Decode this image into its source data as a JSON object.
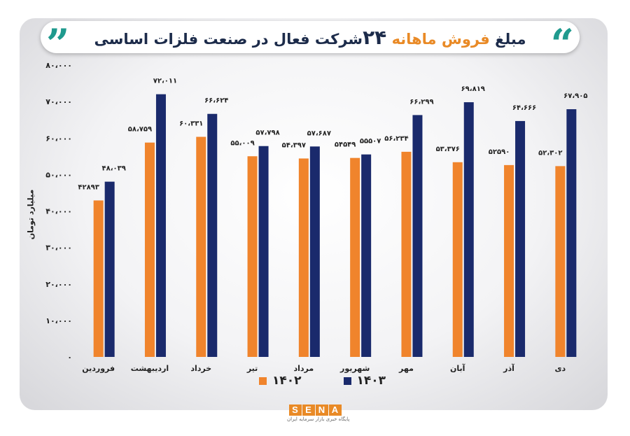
{
  "title": {
    "part1": "مبلغ",
    "part2": "فروش",
    "part3": "ماهانه",
    "number": "۲۴",
    "part4": "شرکت فعال در صنعت فلزات اساسی"
  },
  "colors": {
    "series_1402": "#f0842c",
    "series_1403": "#1a2a6c",
    "accent": "#1f9a8e"
  },
  "legend": {
    "s1402": "۱۴۰۲",
    "s1403": "۱۴۰۳"
  },
  "logo": {
    "letters": [
      "S",
      "E",
      "N",
      "A"
    ],
    "subtitle": "پایگاه خبری بازار سرمایه ایران"
  },
  "chart_data": {
    "type": "bar",
    "ylabel": "میلیارد تومان",
    "ylim": [
      0,
      80000
    ],
    "yticks": [
      0,
      10000,
      20000,
      30000,
      40000,
      50000,
      60000,
      70000,
      80000
    ],
    "ytick_labels": [
      "۰",
      "۱۰،۰۰۰",
      "۲۰،۰۰۰",
      "۳۰،۰۰۰",
      "۴۰،۰۰۰",
      "۵۰،۰۰۰",
      "۶۰،۰۰۰",
      "۷۰،۰۰۰",
      "۸۰،۰۰۰"
    ],
    "categories": [
      "فروردین",
      "اردیبهشت",
      "خرداد",
      "تیر",
      "مرداد",
      "شهریور",
      "مهر",
      "آبان",
      "آذر",
      "دی"
    ],
    "series": [
      {
        "name": "۱۴۰۲",
        "values": [
          42893,
          58759,
          60331,
          55009,
          54397,
          54549,
          56234,
          53376,
          52590,
          52302
        ],
        "labels": [
          "۴۲۸۹۳",
          "۵۸،۷۵۹",
          "۶۰،۳۳۱",
          "۵۵،۰۰۹",
          "۵۴،۳۹۷",
          "۵۴۵۴۹",
          "۵۶،۲۳۴",
          "۵۳،۳۷۶",
          "۵۲۵۹۰",
          "۵۲،۳۰۲"
        ]
      },
      {
        "name": "۱۴۰۳",
        "values": [
          48039,
          72011,
          66624,
          57798,
          57687,
          55507,
          66299,
          69819,
          64666,
          67905
        ],
        "labels": [
          "۴۸،۰۳۹",
          "۷۲،۰۱۱",
          "۶۶،۶۲۴",
          "۵۷،۷۹۸",
          "۵۷،۶۸۷",
          "۵۵۵۰۷",
          "۶۶،۲۹۹",
          "۶۹،۸۱۹",
          "۶۴،۶۶۶",
          "۶۷،۹۰۵"
        ]
      }
    ]
  }
}
